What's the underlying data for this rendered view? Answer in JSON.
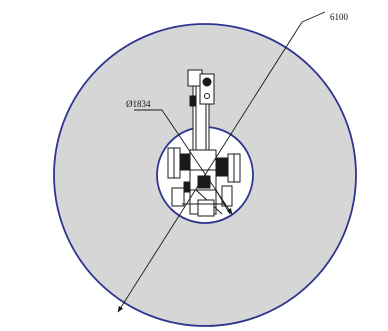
{
  "diagram": {
    "outer_diameter_label": "6100",
    "inner_diameter_label": "Ø1834",
    "colors": {
      "outer_fill": "#d6d6d6",
      "outer_stroke": "#2e3590",
      "inner_fill": "#ffffff",
      "inner_stroke": "#2e3590",
      "drawing_lines": "#1a1a1a"
    }
  }
}
